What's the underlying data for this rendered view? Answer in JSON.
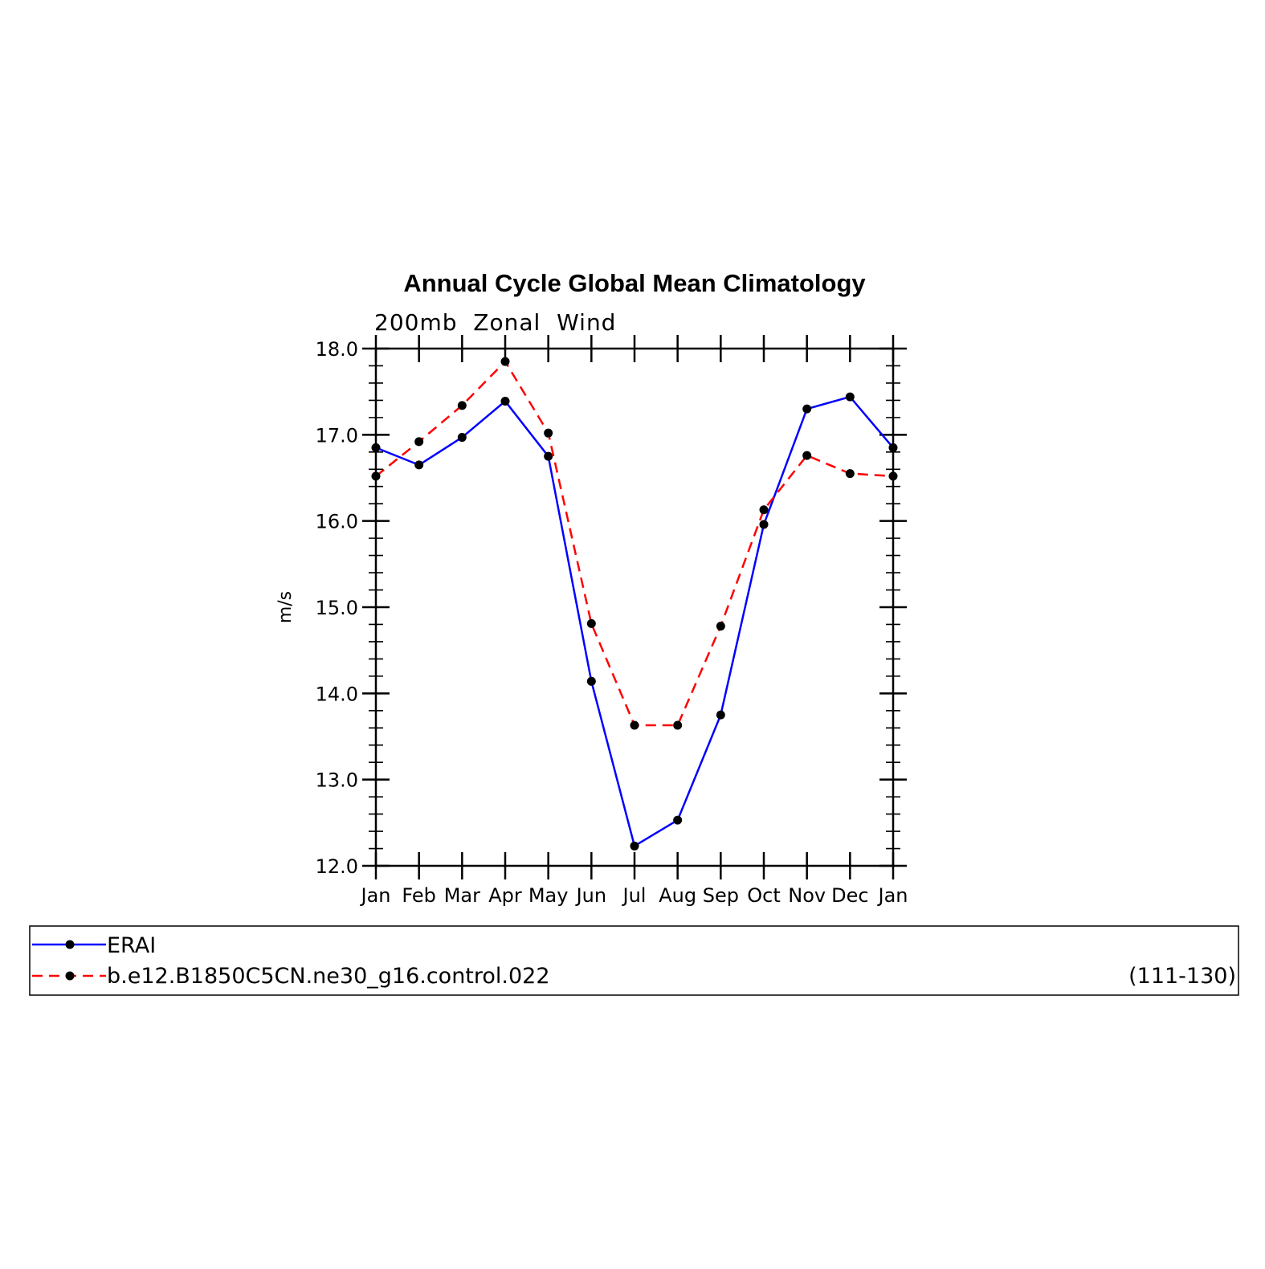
{
  "chart_data": {
    "type": "line",
    "title": "Annual Cycle Global Mean Climatology",
    "subtitle": "200mb  Zonal  Wind",
    "xlabel": "",
    "ylabel": "m/s",
    "categories": [
      "Jan",
      "Feb",
      "Mar",
      "Apr",
      "May",
      "Jun",
      "Jul",
      "Aug",
      "Sep",
      "Oct",
      "Nov",
      "Dec",
      "Jan"
    ],
    "ylim": [
      12.0,
      18.0
    ],
    "yticks": [
      "12.0",
      "13.0",
      "14.0",
      "15.0",
      "16.0",
      "17.0",
      "18.0"
    ],
    "grid": false,
    "legend_position": "bottom",
    "series": [
      {
        "name": "ERAI",
        "color": "#0000ff",
        "dash": "solid",
        "marker": "dot",
        "values": [
          16.85,
          16.65,
          16.97,
          17.39,
          16.75,
          14.14,
          12.23,
          12.53,
          13.75,
          15.96,
          17.3,
          17.44,
          16.85
        ]
      },
      {
        "name": "b.e12.B1850C5CN.ne30_g16.control.022",
        "color": "#ff0000",
        "dash": "dashed",
        "marker": "dot",
        "values": [
          16.52,
          16.92,
          17.34,
          17.85,
          17.02,
          14.81,
          13.63,
          13.63,
          14.78,
          16.13,
          16.76,
          16.55,
          16.52
        ]
      }
    ],
    "legend_note": "(111-130)"
  }
}
